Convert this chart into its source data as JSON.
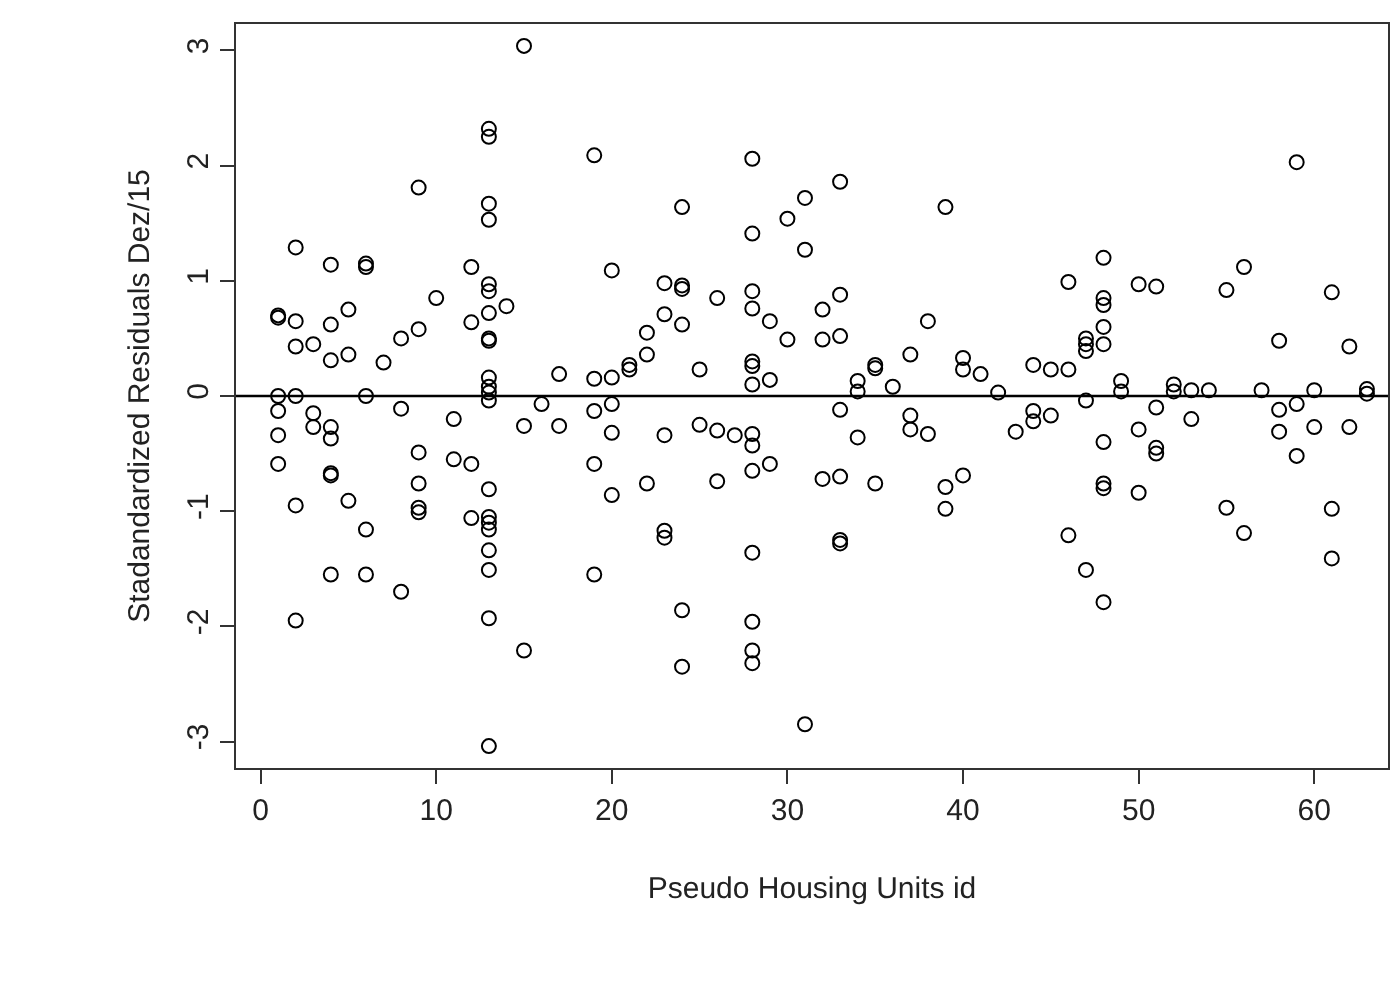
{
  "chart_data": {
    "type": "scatter",
    "xlabel": "Pseudo Housing Units id",
    "ylabel": "Stadandardized Residuals Dez/15",
    "color": "#000000",
    "marker": "circle",
    "x": [
      1,
      1,
      1,
      1,
      1,
      1,
      2,
      2,
      2,
      2,
      2,
      2,
      3,
      3,
      3,
      4,
      4,
      4,
      4,
      4,
      4,
      4,
      4,
      5,
      5,
      5,
      6,
      6,
      6,
      6,
      6,
      7,
      8,
      8,
      8,
      9,
      9,
      9,
      9,
      9,
      9,
      10,
      11,
      11,
      12,
      12,
      12,
      12,
      13,
      13,
      13,
      13,
      13,
      13,
      13,
      13,
      13,
      13,
      13,
      13,
      13,
      13,
      13,
      13,
      13,
      13,
      13,
      13,
      13,
      14,
      15,
      15,
      15,
      16,
      17,
      17,
      19,
      19,
      19,
      19,
      19,
      20,
      20,
      20,
      20,
      20,
      21,
      21,
      22,
      22,
      22,
      23,
      23,
      23,
      23,
      23,
      24,
      24,
      24,
      24,
      24,
      24,
      25,
      25,
      26,
      26,
      26,
      27,
      28,
      28,
      28,
      28,
      28,
      28,
      28,
      28,
      28,
      28,
      28,
      28,
      28,
      28,
      29,
      29,
      29,
      30,
      30,
      31,
      31,
      31,
      32,
      32,
      32,
      33,
      33,
      33,
      33,
      33,
      33,
      33,
      34,
      34,
      34,
      35,
      35,
      35,
      36,
      37,
      37,
      37,
      38,
      38,
      39,
      39,
      39,
      40,
      40,
      40,
      41,
      42,
      43,
      44,
      44,
      44,
      45,
      45,
      46,
      46,
      46,
      47,
      47,
      47,
      47,
      47,
      48,
      48,
      48,
      48,
      48,
      48,
      48,
      48,
      48,
      49,
      49,
      50,
      50,
      50,
      51,
      51,
      51,
      51,
      52,
      52,
      53,
      53,
      54,
      55,
      55,
      56,
      56,
      57,
      58,
      58,
      58,
      59,
      59,
      59,
      60,
      60,
      61,
      61,
      61,
      62,
      62,
      63,
      63
    ],
    "values": [
      0.7,
      0.68,
      0.0,
      -0.13,
      -0.34,
      -0.59,
      1.29,
      0.65,
      0.43,
      0.0,
      -0.95,
      -1.95,
      0.45,
      -0.15,
      -0.27,
      1.14,
      0.62,
      0.31,
      -0.27,
      -0.37,
      -0.67,
      -0.69,
      -1.55,
      0.75,
      0.36,
      -0.91,
      1.15,
      1.12,
      0.0,
      -1.16,
      -1.55,
      0.29,
      0.5,
      -0.11,
      -1.7,
      1.81,
      0.58,
      -0.49,
      -0.76,
      -0.97,
      -1.01,
      0.85,
      -0.2,
      -0.55,
      1.12,
      0.64,
      -0.59,
      -1.06,
      2.32,
      2.25,
      1.67,
      1.53,
      0.97,
      0.91,
      0.72,
      0.5,
      0.48,
      0.16,
      0.08,
      0.03,
      -0.04,
      -0.81,
      -1.05,
      -1.1,
      -1.16,
      -1.34,
      -1.51,
      -1.93,
      -3.04,
      0.78,
      3.04,
      -0.26,
      -2.21,
      -0.07,
      0.19,
      -0.26,
      2.09,
      0.15,
      -0.13,
      -0.59,
      -1.55,
      1.09,
      0.16,
      -0.07,
      -0.32,
      -0.86,
      0.27,
      0.23,
      0.55,
      0.36,
      -0.76,
      0.98,
      0.71,
      -0.34,
      -1.17,
      -1.23,
      1.64,
      0.96,
      0.93,
      0.62,
      -1.86,
      -2.35,
      0.23,
      -0.25,
      0.85,
      -0.3,
      -0.74,
      -0.34,
      2.06,
      1.41,
      0.91,
      0.76,
      0.3,
      0.26,
      0.1,
      -0.33,
      -0.43,
      -0.65,
      -1.36,
      -1.96,
      -2.21,
      -2.32,
      0.65,
      0.14,
      -0.59,
      1.54,
      0.49,
      1.72,
      1.27,
      -2.85,
      0.75,
      0.49,
      -0.72,
      1.86,
      0.88,
      0.52,
      -0.12,
      -0.7,
      -1.25,
      -1.28,
      0.13,
      0.04,
      -0.36,
      0.27,
      0.24,
      -0.76,
      0.08,
      0.36,
      -0.17,
      -0.29,
      0.65,
      -0.33,
      1.64,
      -0.79,
      -0.98,
      0.33,
      0.23,
      -0.69,
      0.19,
      0.03,
      -0.31,
      0.27,
      -0.13,
      -0.22,
      0.23,
      -0.17,
      0.99,
      0.23,
      -1.21,
      0.5,
      0.45,
      0.39,
      -0.04,
      -1.51,
      1.2,
      0.85,
      0.79,
      0.6,
      0.45,
      -0.4,
      -0.76,
      -0.8,
      -1.79,
      0.13,
      0.04,
      0.97,
      -0.29,
      -0.84,
      0.95,
      -0.1,
      -0.45,
      -0.5,
      0.1,
      0.04,
      0.05,
      -0.2,
      0.05,
      0.92,
      -0.97,
      1.12,
      -1.19,
      0.05,
      0.48,
      -0.12,
      -0.31,
      2.03,
      -0.07,
      -0.52,
      0.05,
      -0.27,
      0.9,
      -0.98,
      -1.41,
      0.43,
      -0.27,
      0.06,
      0.02
    ],
    "xlim": [
      -1.4,
      64.2
    ],
    "ylim": [
      -3.23,
      3.23
    ],
    "xticks": [
      0,
      10,
      20,
      30,
      40,
      50,
      60
    ],
    "yticks": [
      -3,
      -2,
      -1,
      0,
      1,
      2,
      3
    ],
    "ref_lines": [
      {
        "axis": "y",
        "value": 0,
        "color": "#000000"
      }
    ]
  }
}
